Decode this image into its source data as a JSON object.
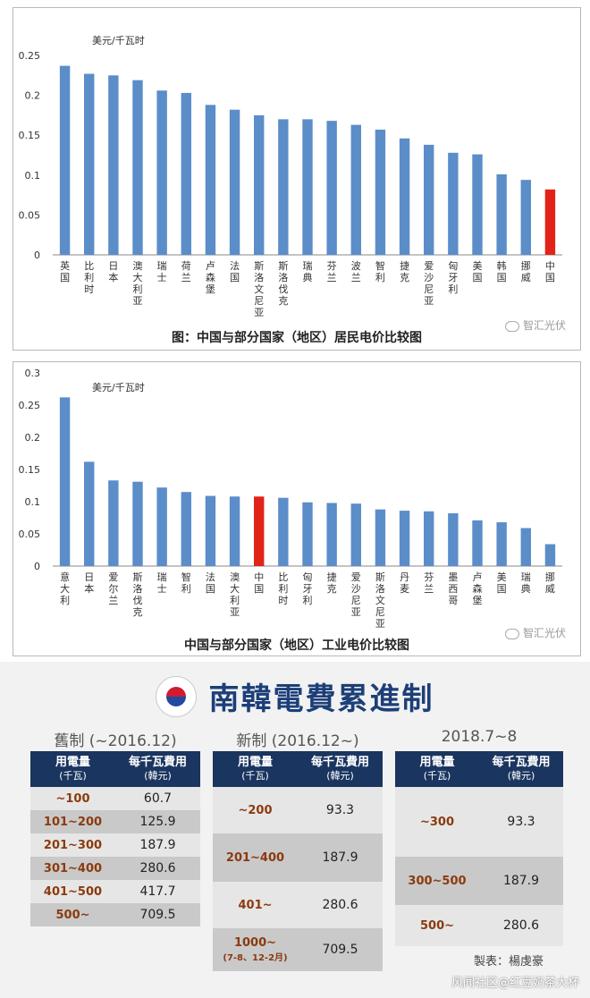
{
  "chart_data": [
    {
      "type": "bar",
      "unit_label": "美元/千瓦时",
      "title": "图：中国与部分国家（地区）居民电价比较图",
      "categories": [
        "英国",
        "比利时",
        "日本",
        "澳大利亚",
        "瑞士",
        "荷兰",
        "卢森堡",
        "法国",
        "斯洛文尼亚",
        "斯洛伐克",
        "瑞典",
        "芬兰",
        "波兰",
        "智利",
        "捷克",
        "爱沙尼亚",
        "匈牙利",
        "美国",
        "韩国",
        "挪威",
        "中国"
      ],
      "values": [
        0.237,
        0.227,
        0.225,
        0.219,
        0.206,
        0.203,
        0.188,
        0.182,
        0.175,
        0.17,
        0.17,
        0.168,
        0.163,
        0.157,
        0.146,
        0.138,
        0.128,
        0.126,
        0.101,
        0.094,
        0.082
      ],
      "highlight_index": 20,
      "ylim": [
        0,
        0.25
      ],
      "yticks": [
        "0",
        "0.05",
        "0.1",
        "0.15",
        "0.2",
        "0.25"
      ],
      "ytick_values": [
        0,
        0.05,
        0.1,
        0.15,
        0.2,
        0.25
      ],
      "colors": {
        "bar": "#5b8dc9",
        "highlight": "#e2231a"
      }
    },
    {
      "type": "bar",
      "unit_label": "美元/千瓦时",
      "title": "中国与部分国家（地区）工业电价比较图",
      "categories": [
        "意大利",
        "日本",
        "爱尔兰",
        "斯洛伐克",
        "瑞士",
        "智利",
        "法国",
        "澳大利亚",
        "中国",
        "比利时",
        "匈牙利",
        "捷克",
        "爱沙尼亚",
        "斯洛文尼亚",
        "丹麦",
        "芬兰",
        "墨西哥",
        "卢森堡",
        "美国",
        "瑞典",
        "挪威"
      ],
      "values": [
        0.262,
        0.162,
        0.133,
        0.131,
        0.122,
        0.115,
        0.109,
        0.108,
        0.108,
        0.106,
        0.099,
        0.098,
        0.097,
        0.088,
        0.086,
        0.085,
        0.082,
        0.071,
        0.068,
        0.059,
        0.034
      ],
      "highlight_index": 8,
      "ylim": [
        0,
        0.3
      ],
      "yticks": [
        "0",
        "0.05",
        "0.1",
        "0.15",
        "0.2",
        "0.25",
        "0.3"
      ],
      "ytick_values": [
        0,
        0.05,
        0.1,
        0.15,
        0.2,
        0.25,
        0.3
      ],
      "colors": {
        "bar": "#5b8dc9",
        "highlight": "#e2231a"
      }
    }
  ],
  "watermark": "智汇光伏",
  "korea": {
    "title": "南韓電費累進制",
    "header": {
      "usage": "用電量",
      "usage_unit": "(千瓦)",
      "price": "每千瓦費用",
      "price_unit": "(韓元)"
    },
    "old": {
      "label": "舊制 (~2016.12)",
      "rows": [
        {
          "range": "~100",
          "price": "60.7"
        },
        {
          "range": "101~200",
          "price": "125.9"
        },
        {
          "range": "201~300",
          "price": "187.9"
        },
        {
          "range": "301~400",
          "price": "280.6"
        },
        {
          "range": "401~500",
          "price": "417.7"
        },
        {
          "range": "500~",
          "price": "709.5"
        }
      ]
    },
    "new": {
      "label": "新制 (2016.12~)",
      "rows": [
        {
          "range": "~200",
          "price": "93.3"
        },
        {
          "range": "201~400",
          "price": "187.9"
        },
        {
          "range": "401~",
          "price": "280.6"
        },
        {
          "range": "1000~",
          "sub": "(7-8、12-2月)",
          "price": "709.5"
        }
      ]
    },
    "summer": {
      "label": "2018.7~8",
      "rows": [
        {
          "range": "~300",
          "price": "93.3"
        },
        {
          "range": "300~500",
          "price": "187.9"
        },
        {
          "range": "500~",
          "price": "280.6"
        }
      ]
    },
    "credit": "製表：楊虔豪",
    "site_watermark": "风闻社区@红豆奶茶大杯"
  }
}
